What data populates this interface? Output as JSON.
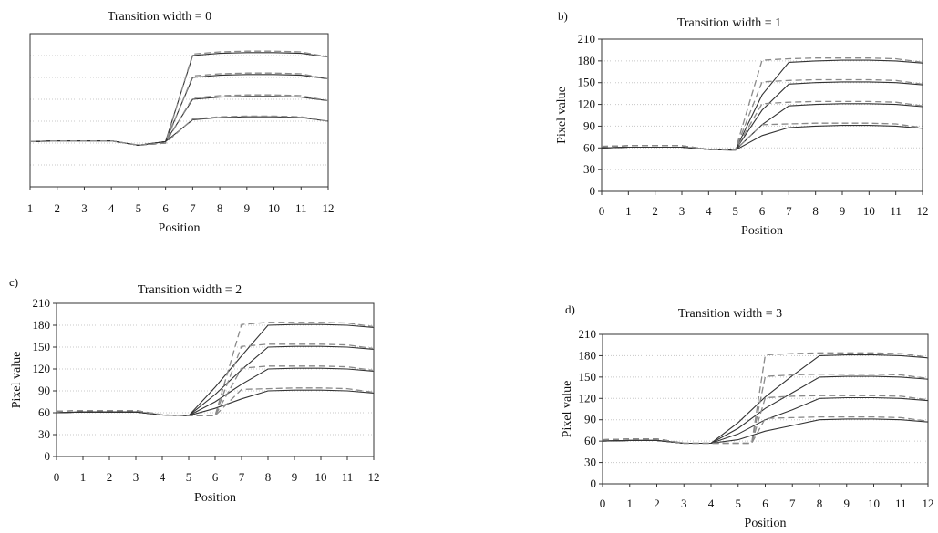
{
  "chart_data": [
    {
      "type": "line",
      "panel": "",
      "title": "Transition width = 0",
      "xlabel": "Position",
      "ylabel": "",
      "xlim": [
        1,
        12
      ],
      "ylim": [
        0,
        210
      ],
      "x_ticks": [
        "1",
        "2",
        "3",
        "4",
        "5",
        "6",
        "7",
        "8",
        "9",
        "10",
        "11",
        "12"
      ],
      "y_ticks": [],
      "series": [
        {
          "style": "solid",
          "x": [
            1,
            2,
            3,
            4,
            5,
            6,
            7,
            8,
            9,
            10,
            11,
            12
          ],
          "y": [
            62,
            63,
            63,
            63,
            57,
            62,
            92,
            95,
            96,
            96,
            95,
            90
          ]
        },
        {
          "style": "solid",
          "x": [
            1,
            2,
            3,
            4,
            5,
            6,
            7,
            8,
            9,
            10,
            11,
            12
          ],
          "y": [
            62,
            63,
            63,
            63,
            57,
            62,
            120,
            123,
            124,
            124,
            123,
            118
          ]
        },
        {
          "style": "solid",
          "x": [
            1,
            2,
            3,
            4,
            5,
            6,
            7,
            8,
            9,
            10,
            11,
            12
          ],
          "y": [
            62,
            63,
            63,
            63,
            57,
            62,
            150,
            153,
            154,
            154,
            153,
            148
          ]
        },
        {
          "style": "solid",
          "x": [
            1,
            2,
            3,
            4,
            5,
            6,
            7,
            8,
            9,
            10,
            11,
            12
          ],
          "y": [
            62,
            63,
            63,
            63,
            57,
            62,
            180,
            183,
            184,
            184,
            183,
            178
          ]
        },
        {
          "style": "dashed",
          "x": [
            1,
            2,
            3,
            4,
            5,
            6,
            7,
            8,
            9,
            10,
            11,
            12
          ],
          "y": [
            62,
            63,
            63,
            63,
            57,
            60,
            93,
            96,
            97,
            97,
            96,
            90
          ]
        },
        {
          "style": "dashed",
          "x": [
            1,
            2,
            3,
            4,
            5,
            6,
            7,
            8,
            9,
            10,
            11,
            12
          ],
          "y": [
            62,
            63,
            63,
            63,
            57,
            60,
            122,
            125,
            126,
            126,
            125,
            118
          ]
        },
        {
          "style": "dashed",
          "x": [
            1,
            2,
            3,
            4,
            5,
            6,
            7,
            8,
            9,
            10,
            11,
            12
          ],
          "y": [
            62,
            63,
            63,
            63,
            57,
            60,
            152,
            155,
            156,
            156,
            155,
            148
          ]
        },
        {
          "style": "dashed",
          "x": [
            1,
            2,
            3,
            4,
            5,
            6,
            7,
            8,
            9,
            10,
            11,
            12
          ],
          "y": [
            62,
            63,
            63,
            63,
            57,
            60,
            182,
            185,
            186,
            186,
            185,
            178
          ]
        }
      ]
    },
    {
      "type": "line",
      "panel": "b)",
      "title": "Transition width = 1",
      "xlabel": "Position",
      "ylabel": "Pixel value",
      "xlim": [
        0,
        12
      ],
      "ylim": [
        0,
        210
      ],
      "x_ticks": [
        "0",
        "1",
        "2",
        "3",
        "4",
        "5",
        "6",
        "7",
        "8",
        "9",
        "10",
        "11",
        "12"
      ],
      "y_ticks": [
        "0",
        "30",
        "60",
        "90",
        "120",
        "150",
        "180",
        "210"
      ],
      "series": [
        {
          "style": "solid",
          "x": [
            0,
            1,
            2,
            3,
            4,
            5,
            6,
            7,
            8,
            9,
            10,
            11,
            12
          ],
          "y": [
            60,
            61,
            61,
            61,
            58,
            57,
            77,
            88,
            90,
            91,
            91,
            90,
            87
          ]
        },
        {
          "style": "solid",
          "x": [
            0,
            1,
            2,
            3,
            4,
            5,
            6,
            7,
            8,
            9,
            10,
            11,
            12
          ],
          "y": [
            60,
            61,
            61,
            61,
            58,
            57,
            92,
            118,
            120,
            121,
            121,
            120,
            117
          ]
        },
        {
          "style": "solid",
          "x": [
            0,
            1,
            2,
            3,
            4,
            5,
            6,
            7,
            8,
            9,
            10,
            11,
            12
          ],
          "y": [
            60,
            61,
            61,
            61,
            58,
            57,
            112,
            148,
            150,
            151,
            151,
            150,
            147
          ]
        },
        {
          "style": "solid",
          "x": [
            0,
            1,
            2,
            3,
            4,
            5,
            6,
            7,
            8,
            9,
            10,
            11,
            12
          ],
          "y": [
            60,
            61,
            61,
            61,
            58,
            57,
            133,
            178,
            180,
            181,
            181,
            180,
            177
          ]
        },
        {
          "style": "dashed",
          "x": [
            0,
            1,
            2,
            3,
            4,
            5,
            6,
            7,
            8,
            9,
            10,
            11,
            12
          ],
          "y": [
            62,
            63,
            63,
            63,
            58,
            57,
            92,
            93,
            94,
            94,
            94,
            93,
            88
          ]
        },
        {
          "style": "dashed",
          "x": [
            0,
            1,
            2,
            3,
            4,
            5,
            6,
            7,
            8,
            9,
            10,
            11,
            12
          ],
          "y": [
            62,
            63,
            63,
            63,
            58,
            57,
            121,
            123,
            124,
            124,
            124,
            123,
            118
          ]
        },
        {
          "style": "dashed",
          "x": [
            0,
            1,
            2,
            3,
            4,
            5,
            6,
            7,
            8,
            9,
            10,
            11,
            12
          ],
          "y": [
            62,
            63,
            63,
            63,
            58,
            57,
            151,
            153,
            154,
            154,
            154,
            153,
            148
          ]
        },
        {
          "style": "dashed",
          "x": [
            0,
            1,
            2,
            3,
            4,
            5,
            6,
            7,
            8,
            9,
            10,
            11,
            12
          ],
          "y": [
            62,
            63,
            63,
            63,
            58,
            57,
            181,
            183,
            184,
            184,
            184,
            183,
            178
          ]
        }
      ]
    },
    {
      "type": "line",
      "panel": "c)",
      "title": "Transition width = 2",
      "xlabel": "Position",
      "ylabel": "Pixel value",
      "xlim": [
        0,
        12
      ],
      "ylim": [
        0,
        210
      ],
      "x_ticks": [
        "0",
        "1",
        "2",
        "3",
        "4",
        "5",
        "6",
        "7",
        "8",
        "9",
        "10",
        "11",
        "12"
      ],
      "y_ticks": [
        "0",
        "30",
        "60",
        "90",
        "120",
        "150",
        "180",
        "210"
      ],
      "series": [
        {
          "style": "solid",
          "x": [
            0,
            1,
            2,
            3,
            4,
            5,
            6,
            7,
            8,
            9,
            10,
            11,
            12
          ],
          "y": [
            60,
            61,
            61,
            61,
            57,
            56,
            66,
            79,
            90,
            91,
            91,
            90,
            87
          ]
        },
        {
          "style": "solid",
          "x": [
            0,
            1,
            2,
            3,
            4,
            5,
            6,
            7,
            8,
            9,
            10,
            11,
            12
          ],
          "y": [
            60,
            61,
            61,
            61,
            57,
            56,
            75,
            99,
            120,
            121,
            121,
            120,
            117
          ]
        },
        {
          "style": "solid",
          "x": [
            0,
            1,
            2,
            3,
            4,
            5,
            6,
            7,
            8,
            9,
            10,
            11,
            12
          ],
          "y": [
            60,
            61,
            61,
            61,
            57,
            56,
            85,
            119,
            150,
            151,
            151,
            150,
            147
          ]
        },
        {
          "style": "solid",
          "x": [
            0,
            1,
            2,
            3,
            4,
            5,
            6,
            7,
            8,
            9,
            10,
            11,
            12
          ],
          "y": [
            60,
            61,
            61,
            61,
            57,
            56,
            95,
            138,
            180,
            181,
            181,
            180,
            177
          ]
        },
        {
          "style": "dashed",
          "x": [
            0,
            1,
            2,
            3,
            4,
            5,
            6,
            7,
            8,
            9,
            10,
            11,
            12
          ],
          "y": [
            62,
            63,
            63,
            63,
            57,
            56,
            56,
            92,
            93,
            94,
            94,
            93,
            88
          ]
        },
        {
          "style": "dashed",
          "x": [
            0,
            1,
            2,
            3,
            4,
            5,
            6,
            7,
            8,
            9,
            10,
            11,
            12
          ],
          "y": [
            62,
            63,
            63,
            63,
            57,
            56,
            56,
            121,
            124,
            124,
            124,
            123,
            118
          ]
        },
        {
          "style": "dashed",
          "x": [
            0,
            1,
            2,
            3,
            4,
            5,
            6,
            7,
            8,
            9,
            10,
            11,
            12
          ],
          "y": [
            62,
            63,
            63,
            63,
            57,
            56,
            56,
            151,
            154,
            154,
            154,
            153,
            148
          ]
        },
        {
          "style": "dashed",
          "x": [
            0,
            1,
            2,
            3,
            4,
            5,
            6,
            7,
            8,
            9,
            10,
            11,
            12
          ],
          "y": [
            62,
            63,
            63,
            63,
            57,
            56,
            56,
            181,
            184,
            184,
            184,
            183,
            178
          ]
        }
      ]
    },
    {
      "type": "line",
      "panel": "d)",
      "title": "Transition width = 3",
      "xlabel": "Position",
      "ylabel": "Pixel value",
      "xlim": [
        0,
        12
      ],
      "ylim": [
        0,
        210
      ],
      "x_ticks": [
        "0",
        "1",
        "2",
        "3",
        "4",
        "5",
        "6",
        "7",
        "8",
        "9",
        "10",
        "11",
        "12"
      ],
      "y_ticks": [
        "0",
        "30",
        "60",
        "90",
        "120",
        "150",
        "180",
        "210"
      ],
      "series": [
        {
          "style": "solid",
          "x": [
            0,
            1,
            2,
            3,
            4,
            5,
            6,
            7,
            8,
            9,
            10,
            11,
            12
          ],
          "y": [
            60,
            61,
            61,
            57,
            57,
            62,
            74,
            82,
            90,
            91,
            91,
            90,
            87
          ]
        },
        {
          "style": "solid",
          "x": [
            0,
            1,
            2,
            3,
            4,
            5,
            6,
            7,
            8,
            9,
            10,
            11,
            12
          ],
          "y": [
            60,
            61,
            61,
            57,
            57,
            70,
            90,
            104,
            120,
            121,
            121,
            120,
            117
          ]
        },
        {
          "style": "solid",
          "x": [
            0,
            1,
            2,
            3,
            4,
            5,
            6,
            7,
            8,
            9,
            10,
            11,
            12
          ],
          "y": [
            60,
            61,
            61,
            57,
            57,
            78,
            106,
            128,
            150,
            151,
            151,
            150,
            147
          ]
        },
        {
          "style": "solid",
          "x": [
            0,
            1,
            2,
            3,
            4,
            5,
            6,
            7,
            8,
            9,
            10,
            11,
            12
          ],
          "y": [
            60,
            61,
            61,
            57,
            57,
            86,
            122,
            152,
            180,
            181,
            181,
            180,
            177
          ]
        },
        {
          "style": "dashed",
          "x": [
            0,
            1,
            2,
            3,
            4,
            5,
            5.5,
            6,
            7,
            8,
            9,
            10,
            11,
            12
          ],
          "y": [
            62,
            63,
            63,
            57,
            57,
            57,
            57,
            92,
            93,
            94,
            94,
            94,
            93,
            88
          ]
        },
        {
          "style": "dashed",
          "x": [
            0,
            1,
            2,
            3,
            4,
            5,
            5.5,
            6,
            7,
            8,
            9,
            10,
            11,
            12
          ],
          "y": [
            62,
            63,
            63,
            57,
            57,
            57,
            57,
            121,
            123,
            124,
            124,
            124,
            123,
            118
          ]
        },
        {
          "style": "dashed",
          "x": [
            0,
            1,
            2,
            3,
            4,
            5,
            5.5,
            6,
            7,
            8,
            9,
            10,
            11,
            12
          ],
          "y": [
            62,
            63,
            63,
            57,
            57,
            57,
            57,
            151,
            153,
            154,
            154,
            154,
            153,
            148
          ]
        },
        {
          "style": "dashed",
          "x": [
            0,
            1,
            2,
            3,
            4,
            5,
            5.5,
            6,
            7,
            8,
            9,
            10,
            11,
            12
          ],
          "y": [
            62,
            63,
            63,
            57,
            57,
            57,
            57,
            181,
            183,
            184,
            184,
            184,
            183,
            178
          ]
        }
      ]
    }
  ]
}
